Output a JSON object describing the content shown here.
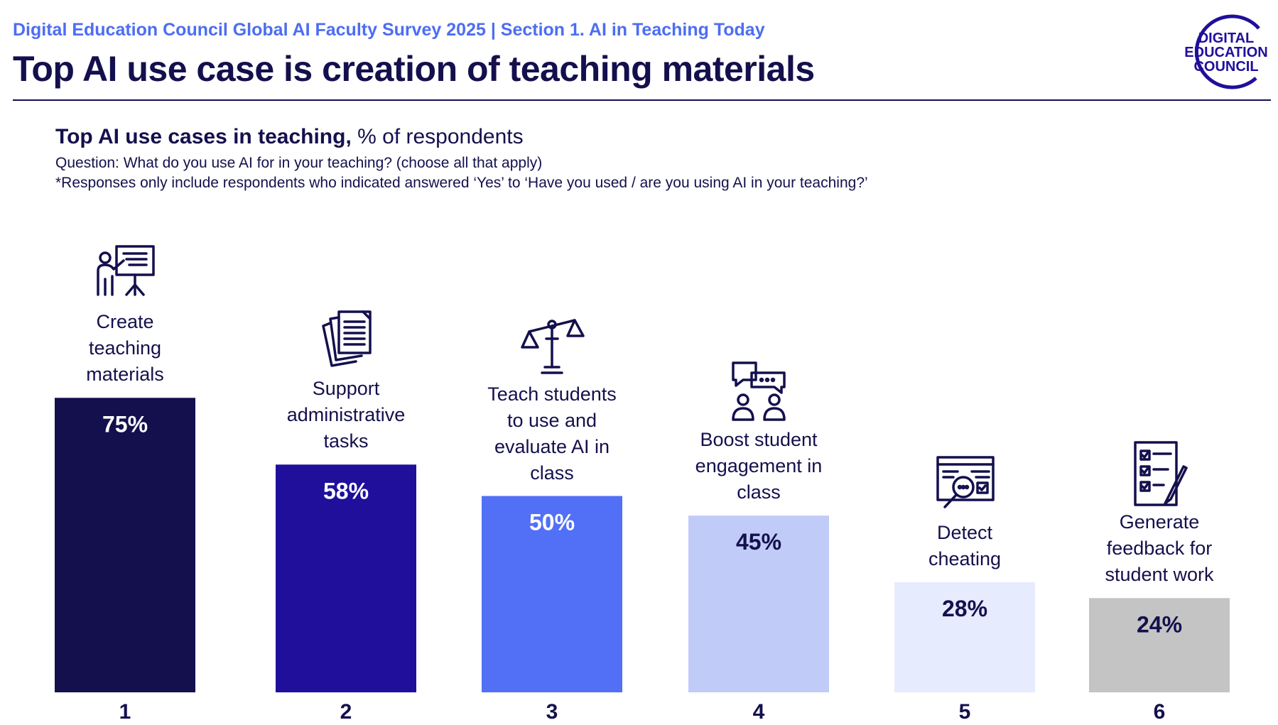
{
  "header": {
    "kicker": "Digital Education Council Global AI Faculty Survey 2025 | Section 1. AI in Teaching Today",
    "title": "Top AI use case is creation of teaching materials"
  },
  "logo": {
    "line1": "DIGITAL",
    "line2": "EDUCATION",
    "line3": "COUNCIL"
  },
  "chart_data": {
    "type": "bar",
    "title": "Top AI use cases in teaching,",
    "title_suffix": "% of respondents",
    "question": "Question: What do you use AI for in your teaching? (choose all that apply)",
    "note": "*Responses only include respondents who indicated answered ‘Yes’ to ‘Have you used / are you using AI in your teaching?’",
    "categories": [
      "1",
      "2",
      "3",
      "4",
      "5",
      "6"
    ],
    "descriptions": [
      [
        "Create",
        "teaching",
        "materials"
      ],
      [
        "Support",
        "administrative",
        "tasks"
      ],
      [
        "Teach students",
        "to use and",
        "evaluate AI in",
        "class"
      ],
      [
        "Boost student",
        "engagement in",
        "class"
      ],
      [
        "Detect",
        "cheating"
      ],
      [
        "Generate",
        "feedback for",
        "student work"
      ]
    ],
    "values": [
      75,
      58,
      50,
      45,
      28,
      24
    ],
    "value_labels": [
      "75%",
      "58%",
      "50%",
      "45%",
      "28%",
      "24%"
    ],
    "colors": [
      "#14104d",
      "#1f0f9b",
      "#5270f5",
      "#c1cbf8",
      "#e6ebfd",
      "#c4c4c4"
    ],
    "label_colors": [
      "#ffffff",
      "#ffffff",
      "#ffffff",
      "#14104d",
      "#14104d",
      "#14104d"
    ],
    "icons": [
      "teacher-board-icon",
      "documents-icon",
      "scales-icon",
      "chat-people-icon",
      "magnifier-screen-icon",
      "checklist-pen-icon"
    ],
    "ylim": [
      0,
      100
    ],
    "grid": false,
    "legend": "none"
  }
}
